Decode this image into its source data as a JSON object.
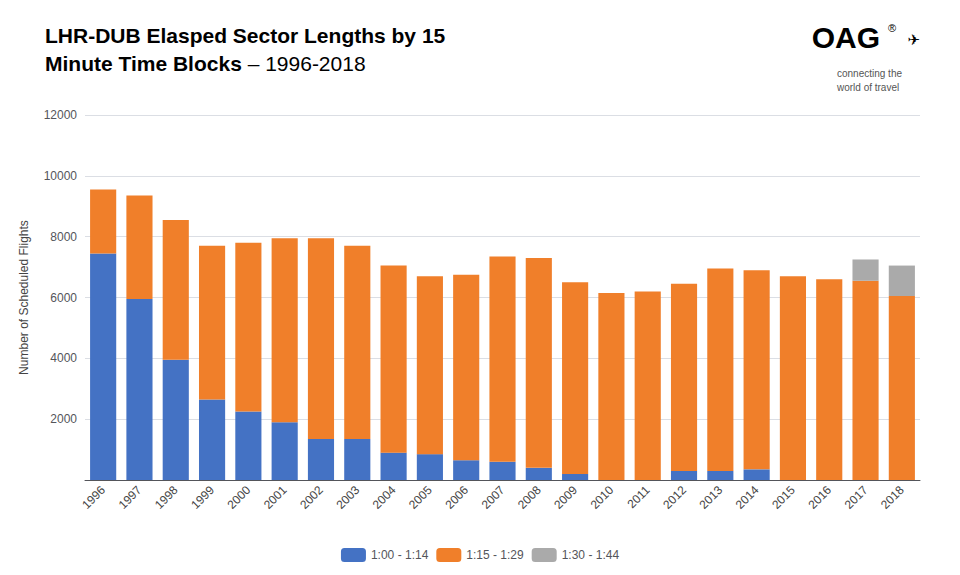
{
  "chart_data": {
    "type": "bar",
    "stacked": true,
    "title": "LHR-DUB Elasped Sector Lengths by 15\nMinute Time Blocks",
    "subtitle": " – 1996-2018",
    "ylabel": "Number of Scheduled Flights",
    "categories": [
      "1996",
      "1997",
      "1998",
      "1999",
      "2000",
      "2001",
      "2002",
      "2003",
      "2004",
      "2005",
      "2006",
      "2007",
      "2008",
      "2009",
      "2010",
      "2011",
      "2012",
      "2013",
      "2014",
      "2015",
      "2016",
      "2017",
      "2018"
    ],
    "series": [
      {
        "name": "1:00 - 1:14",
        "color": "#4472C4",
        "values": [
          7450,
          5950,
          3950,
          2650,
          2250,
          1900,
          1350,
          1350,
          900,
          850,
          650,
          600,
          400,
          200,
          0,
          0,
          300,
          300,
          350,
          0,
          0,
          0,
          0
        ]
      },
      {
        "name": "1:15 - 1:29",
        "color": "#F07F2A",
        "values": [
          2100,
          3400,
          4600,
          5050,
          5550,
          6050,
          6600,
          6350,
          6150,
          5850,
          6100,
          6750,
          6900,
          6300,
          6150,
          6200,
          6150,
          6650,
          6550,
          6700,
          6600,
          6550,
          6050
        ]
      },
      {
        "name": "1:30 - 1:44",
        "color": "#AAAAAA",
        "values": [
          0,
          0,
          0,
          0,
          0,
          0,
          0,
          0,
          0,
          0,
          0,
          0,
          0,
          0,
          0,
          0,
          0,
          0,
          0,
          0,
          0,
          700,
          1000
        ]
      }
    ],
    "ylim": [
      0,
      12000
    ],
    "yticks": [
      {
        "value": 0,
        "label": ""
      },
      2000,
      4000,
      6000,
      8000,
      10000,
      12000
    ],
    "grid": true,
    "legend": "bottom",
    "annotations": [
      {
        "text": "OAG"
      },
      {
        "text": "®"
      },
      {
        "text": "✈"
      },
      {
        "text": "connecting the\nworld of travel"
      }
    ]
  }
}
